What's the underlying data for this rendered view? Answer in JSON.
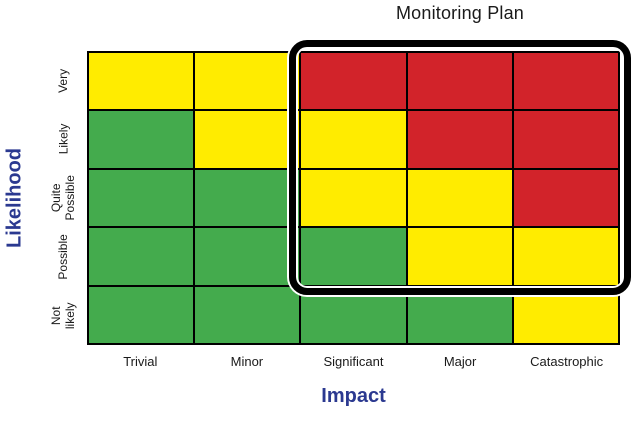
{
  "colors": {
    "green": "#44AB4D",
    "yellow": "#FFEC00",
    "red": "#D2232A",
    "axis_blue": "#2B3990",
    "grid_line": "#000000",
    "annotation_border": "#000000"
  },
  "chart_data": {
    "type": "heatmap",
    "title": "Monitoring Plan",
    "xlabel": "Impact",
    "ylabel": "Likelihood",
    "x_categories": [
      "Trivial",
      "Minor",
      "Significant",
      "Major",
      "Catastrophic"
    ],
    "y_categories_top_to_bottom": [
      "Very",
      "Likely",
      "Quite\nPossible",
      "Possible",
      "Not likely"
    ],
    "cells_top_to_bottom": [
      [
        "yellow",
        "yellow",
        "red",
        "red",
        "red"
      ],
      [
        "green",
        "yellow",
        "yellow",
        "red",
        "red"
      ],
      [
        "green",
        "green",
        "yellow",
        "yellow",
        "red"
      ],
      [
        "green",
        "green",
        "green",
        "yellow",
        "yellow"
      ],
      [
        "green",
        "green",
        "green",
        "green",
        "yellow"
      ]
    ],
    "legend": "none",
    "grid": "on",
    "annotation": {
      "label": "Monitoring Plan",
      "x_range": [
        "Significant",
        "Catastrophic"
      ],
      "y_range": [
        "Very",
        "Possible"
      ],
      "style": "thick black rounded rectangle"
    }
  }
}
